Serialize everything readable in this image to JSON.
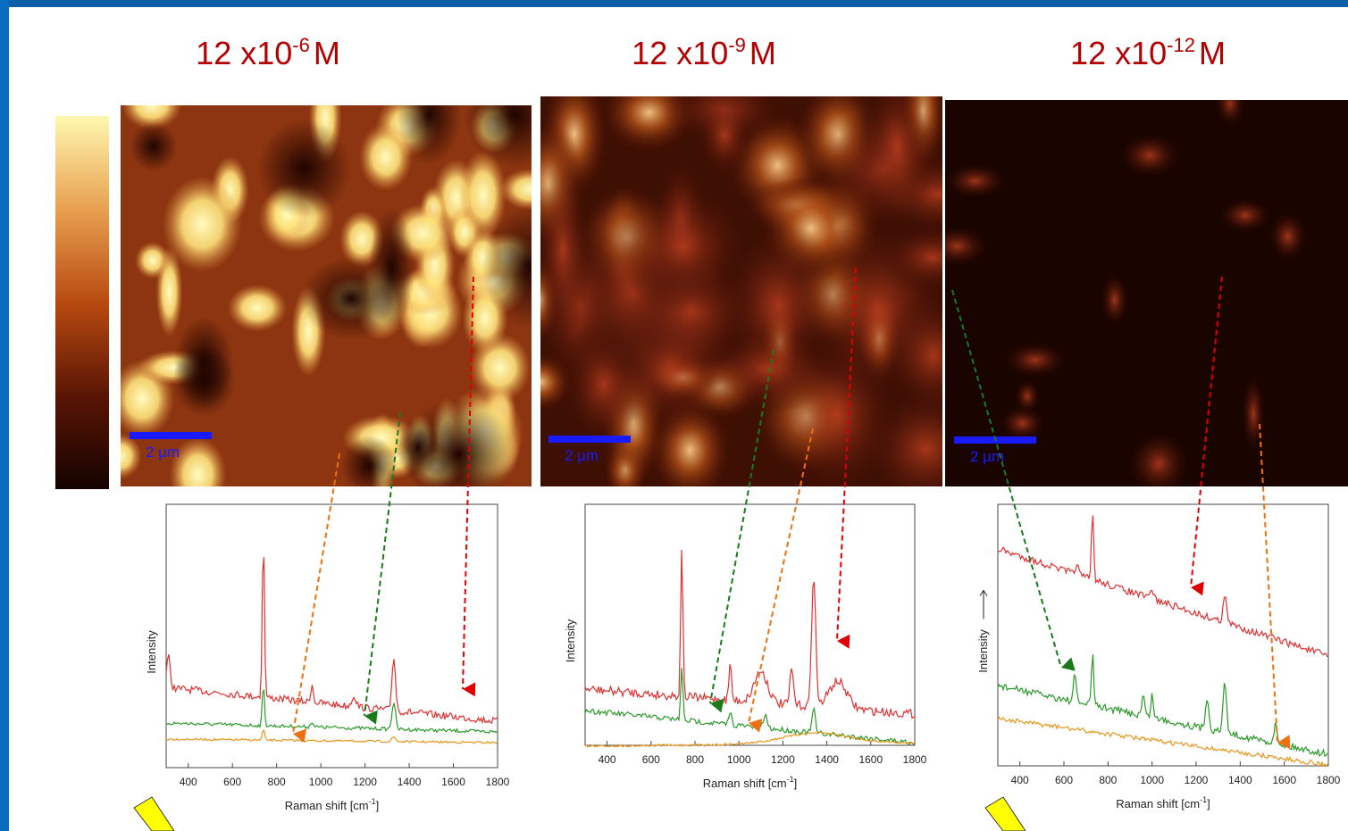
{
  "panels": [
    {
      "title": {
        "base": "12 x10",
        "exponent": "-6",
        "unit": "M"
      },
      "scale_bar": "2 µm",
      "spectrum": {
        "ylabel": "Intensity",
        "xlabel": {
          "text": "Raman shift [cm",
          "exponent": "-1",
          "close": "]"
        },
        "xlim": [
          300,
          1800
        ],
        "xticks": [
          400,
          600,
          800,
          1000,
          1200,
          1400,
          1600,
          1800
        ]
      }
    },
    {
      "title": {
        "base": "12 x10",
        "exponent": "-9",
        "unit": "M"
      },
      "scale_bar": "2 µm",
      "spectrum": {
        "ylabel": "Intensity",
        "xlabel": {
          "text": "Raman shift [cm",
          "exponent": "-1",
          "close": "]"
        },
        "xlim": [
          300,
          1800
        ],
        "xticks": [
          400,
          600,
          800,
          1000,
          1200,
          1400,
          1600,
          1800
        ]
      }
    },
    {
      "title": {
        "base": "12 x10",
        "exponent": "-12",
        "unit": "M"
      },
      "scale_bar": "2 µm",
      "spectrum": {
        "ylabel": "Intensity",
        "xlabel": {
          "text": "Raman shift [cm",
          "exponent": "-1",
          "close": "]"
        },
        "xlim": [
          300,
          1800
        ],
        "xticks": [
          400,
          600,
          800,
          1000,
          1200,
          1400,
          1600,
          1800
        ]
      }
    }
  ]
}
